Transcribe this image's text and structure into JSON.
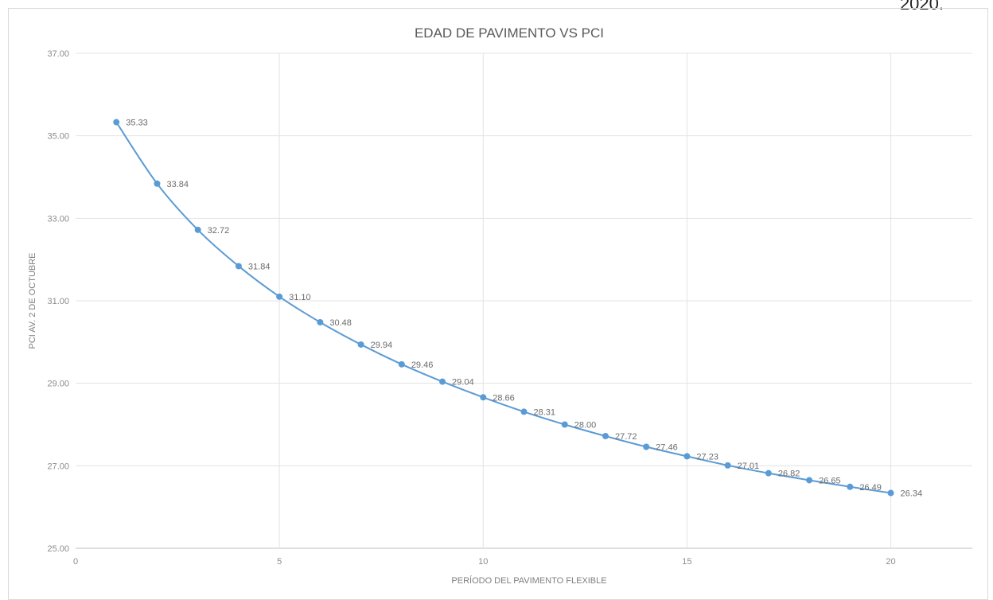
{
  "corner_text": "2020.",
  "chart_data": {
    "type": "scatter",
    "title": "EDAD DE PAVIMENTO VS PCI",
    "xlabel": "PERÍODO DEL PAVIMENTO FLEXIBLE",
    "ylabel": "PCI AV. 2 DE OCTUBRE",
    "xlim": [
      0,
      22
    ],
    "ylim": [
      25,
      37
    ],
    "x_ticks": [
      0,
      5,
      10,
      15,
      20
    ],
    "y_ticks": [
      25,
      27,
      29,
      31,
      33,
      35,
      37
    ],
    "y_tick_labels": [
      "25.00",
      "27.00",
      "29.00",
      "31.00",
      "33.00",
      "35.00",
      "37.00"
    ],
    "grid": true,
    "smooth_line": true,
    "series_color": "#5b9bd5",
    "series": [
      {
        "x": [
          1,
          2,
          3,
          4,
          5,
          6,
          7,
          8,
          9,
          10,
          11,
          12,
          13,
          14,
          15,
          16,
          17,
          18,
          19,
          20
        ],
        "values": [
          35.33,
          33.84,
          32.72,
          31.84,
          31.1,
          30.48,
          29.94,
          29.46,
          29.04,
          28.66,
          28.31,
          28.0,
          27.72,
          27.46,
          27.23,
          27.01,
          26.82,
          26.65,
          26.49,
          26.34
        ],
        "labels": [
          "35.33",
          "33.84",
          "32.72",
          "31.84",
          "31.10",
          "30.48",
          "29.94",
          "29.46",
          "29.04",
          "28.66",
          "28.31",
          "28.00",
          "27.72",
          "27.46",
          "27.23",
          "27.01",
          "26.82",
          "26.65",
          "26.49",
          "26.34"
        ]
      }
    ]
  }
}
